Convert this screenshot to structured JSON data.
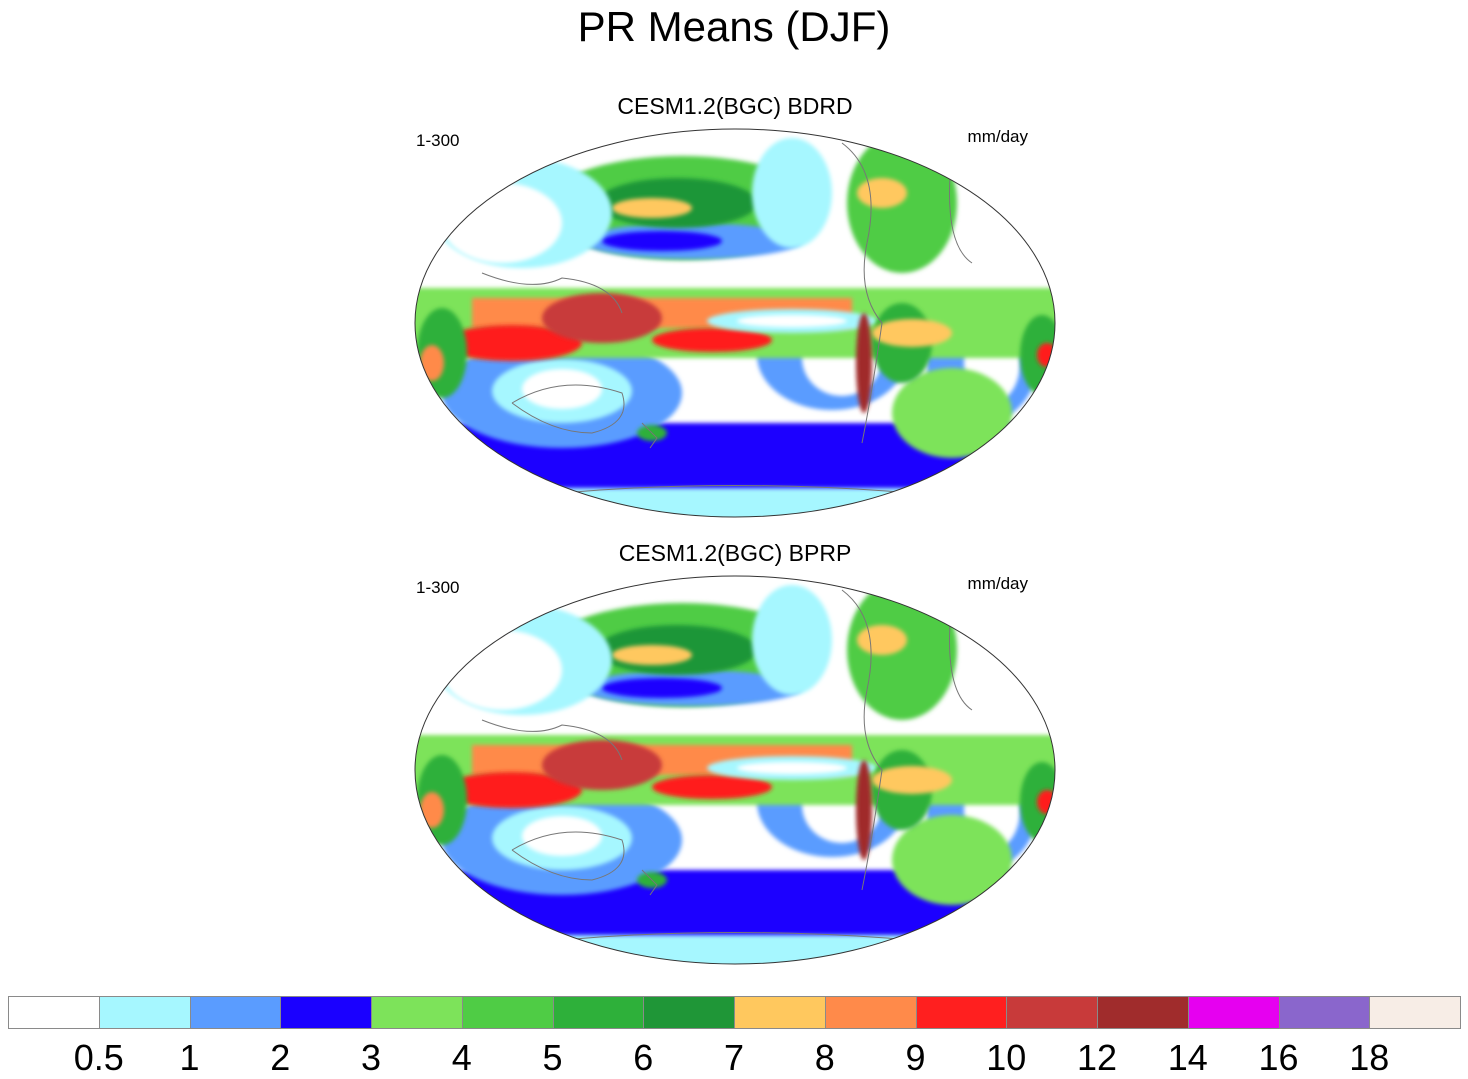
{
  "title": "PR Means (DJF)",
  "panels": [
    {
      "title": "CESM1.2(BGC) BDRD",
      "left_label": "1-300",
      "right_label": "mm/day"
    },
    {
      "title": "CESM1.2(BGC) BPRP",
      "left_label": "1-300",
      "right_label": "mm/day"
    }
  ],
  "legend": {
    "colors": [
      "#ffffff",
      "#a6f7ff",
      "#5a9cff",
      "#1a00ff",
      "#7de35a",
      "#4fcc45",
      "#2eb03a",
      "#1f9637",
      "#ffc85e",
      "#ff8a4a",
      "#ff1f1f",
      "#c83a3a",
      "#a02c2c",
      "#e600f0",
      "#8a66cc",
      "#f7ede6"
    ],
    "labels": [
      "0.5",
      "1",
      "2",
      "3",
      "4",
      "5",
      "6",
      "7",
      "8",
      "9",
      "10",
      "12",
      "14",
      "16",
      "18"
    ]
  }
}
